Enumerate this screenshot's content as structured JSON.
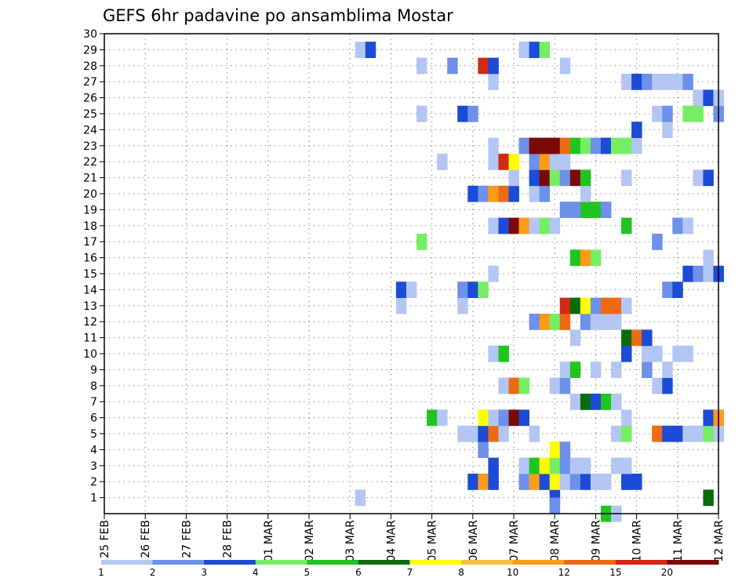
{
  "chart_data": {
    "type": "heatmap",
    "title": "GEFS 6hr padavine po ansamblima Mostar",
    "xlabel": "",
    "ylabel": "",
    "x_tick_labels": [
      "25 FEB",
      "26 FEB",
      "27 FEB",
      "28 FEB",
      "01 MAR",
      "02 MAR",
      "03 MAR",
      "04 MAR",
      "05 MAR",
      "06 MAR",
      "07 MAR",
      "08 MAR",
      "09 MAR",
      "10 MAR",
      "11 MAR",
      "12 MAR"
    ],
    "y_tick_labels": [
      "1",
      "2",
      "3",
      "4",
      "5",
      "6",
      "7",
      "8",
      "9",
      "10",
      "11",
      "12",
      "13",
      "14",
      "15",
      "16",
      "17",
      "18",
      "19",
      "20",
      "21",
      "22",
      "23",
      "24",
      "25",
      "26",
      "27",
      "28",
      "29",
      "30"
    ],
    "x_unit": "6-hour step from 25 FEB 00",
    "x_range": [
      0,
      60
    ],
    "y_range": [
      0,
      30
    ],
    "grid": true,
    "colorbar": {
      "levels": [
        "1",
        "2",
        "3",
        "4",
        "5",
        "6",
        "7",
        "8",
        "10",
        "12",
        "15",
        "20"
      ],
      "colors": [
        "#b3c6f3",
        "#6d90ea",
        "#1c4bd6",
        "#76ee63",
        "#1fc41f",
        "#086c0c",
        "#ffff00",
        "#ffbf40",
        "#ff9a1a",
        "#ee6a12",
        "#cf2a12",
        "#7a0a0a"
      ]
    },
    "cells": [
      {
        "x": 25,
        "y": 1,
        "c": 1
      },
      {
        "x": 44,
        "y": 1,
        "c": 3
      },
      {
        "x": 44,
        "y": 0.5,
        "c": 2
      },
      {
        "x": 59,
        "y": 1,
        "c": 6
      },
      {
        "x": 49,
        "y": 0,
        "c": 5
      },
      {
        "x": 50,
        "y": 0,
        "c": 1
      },
      {
        "x": 36,
        "y": 2,
        "c": 3
      },
      {
        "x": 37,
        "y": 2,
        "c": 9
      },
      {
        "x": 38,
        "y": 2,
        "c": 3
      },
      {
        "x": 41,
        "y": 2,
        "c": 2
      },
      {
        "x": 42,
        "y": 2,
        "c": 9
      },
      {
        "x": 43,
        "y": 2,
        "c": 3
      },
      {
        "x": 44,
        "y": 2,
        "c": 7
      },
      {
        "x": 45,
        "y": 2,
        "c": 1
      },
      {
        "x": 46,
        "y": 2,
        "c": 2
      },
      {
        "x": 47,
        "y": 2,
        "c": 3
      },
      {
        "x": 48,
        "y": 2,
        "c": 1
      },
      {
        "x": 49,
        "y": 2,
        "c": 1
      },
      {
        "x": 51,
        "y": 2,
        "c": 3
      },
      {
        "x": 52,
        "y": 2,
        "c": 3
      },
      {
        "x": 38,
        "y": 3,
        "c": 3
      },
      {
        "x": 41,
        "y": 3,
        "c": 1
      },
      {
        "x": 42,
        "y": 3,
        "c": 5
      },
      {
        "x": 43,
        "y": 3,
        "c": 7
      },
      {
        "x": 44,
        "y": 3,
        "c": 4
      },
      {
        "x": 45,
        "y": 3,
        "c": 2
      },
      {
        "x": 46,
        "y": 3,
        "c": 1
      },
      {
        "x": 47,
        "y": 3,
        "c": 1
      },
      {
        "x": 50,
        "y": 3,
        "c": 1
      },
      {
        "x": 51,
        "y": 3,
        "c": 1
      },
      {
        "x": 37,
        "y": 4,
        "c": 2
      },
      {
        "x": 44,
        "y": 4,
        "c": 7
      },
      {
        "x": 45,
        "y": 4,
        "c": 2
      },
      {
        "x": 35,
        "y": 5,
        "c": 1
      },
      {
        "x": 36,
        "y": 5,
        "c": 1
      },
      {
        "x": 37,
        "y": 5,
        "c": 3
      },
      {
        "x": 38,
        "y": 5,
        "c": 10
      },
      {
        "x": 39,
        "y": 5,
        "c": 1
      },
      {
        "x": 42,
        "y": 5,
        "c": 1
      },
      {
        "x": 50,
        "y": 5,
        "c": 1
      },
      {
        "x": 51,
        "y": 5,
        "c": 4
      },
      {
        "x": 54,
        "y": 5,
        "c": 10
      },
      {
        "x": 55,
        "y": 5,
        "c": 3
      },
      {
        "x": 56,
        "y": 5,
        "c": 3
      },
      {
        "x": 57,
        "y": 5,
        "c": 1
      },
      {
        "x": 58,
        "y": 5,
        "c": 1
      },
      {
        "x": 59,
        "y": 5,
        "c": 4
      },
      {
        "x": 60,
        "y": 5,
        "c": 1
      },
      {
        "x": 32,
        "y": 6,
        "c": 5
      },
      {
        "x": 33,
        "y": 6,
        "c": 1
      },
      {
        "x": 37,
        "y": 6,
        "c": 7
      },
      {
        "x": 38,
        "y": 6,
        "c": 1
      },
      {
        "x": 39,
        "y": 6,
        "c": 2
      },
      {
        "x": 40,
        "y": 6,
        "c": 12
      },
      {
        "x": 41,
        "y": 6,
        "c": 3
      },
      {
        "x": 51,
        "y": 6,
        "c": 1
      },
      {
        "x": 59,
        "y": 6,
        "c": 3
      },
      {
        "x": 60,
        "y": 6,
        "c": 9
      },
      {
        "x": 46,
        "y": 7,
        "c": 1
      },
      {
        "x": 47,
        "y": 7,
        "c": 6
      },
      {
        "x": 48,
        "y": 7,
        "c": 3
      },
      {
        "x": 49,
        "y": 7,
        "c": 5
      },
      {
        "x": 50,
        "y": 7,
        "c": 1
      },
      {
        "x": 39,
        "y": 8,
        "c": 1
      },
      {
        "x": 40,
        "y": 8,
        "c": 10
      },
      {
        "x": 41,
        "y": 8,
        "c": 4
      },
      {
        "x": 44,
        "y": 8,
        "c": 1
      },
      {
        "x": 45,
        "y": 8,
        "c": 2
      },
      {
        "x": 54,
        "y": 8,
        "c": 1
      },
      {
        "x": 55,
        "y": 8,
        "c": 3
      },
      {
        "x": 45,
        "y": 9,
        "c": 1
      },
      {
        "x": 46,
        "y": 9,
        "c": 5
      },
      {
        "x": 48,
        "y": 9,
        "c": 1
      },
      {
        "x": 50,
        "y": 9,
        "c": 1
      },
      {
        "x": 53,
        "y": 9,
        "c": 2
      },
      {
        "x": 55,
        "y": 9,
        "c": 1
      },
      {
        "x": 38,
        "y": 10,
        "c": 1
      },
      {
        "x": 39,
        "y": 10,
        "c": 5
      },
      {
        "x": 51,
        "y": 10,
        "c": 3
      },
      {
        "x": 53,
        "y": 10,
        "c": 1
      },
      {
        "x": 54,
        "y": 10,
        "c": 1
      },
      {
        "x": 56,
        "y": 10,
        "c": 1
      },
      {
        "x": 57,
        "y": 10,
        "c": 1
      },
      {
        "x": 46,
        "y": 11,
        "c": 1
      },
      {
        "x": 51,
        "y": 11,
        "c": 6
      },
      {
        "x": 52,
        "y": 11,
        "c": 10
      },
      {
        "x": 53,
        "y": 11,
        "c": 3
      },
      {
        "x": 42,
        "y": 12,
        "c": 2
      },
      {
        "x": 43,
        "y": 12,
        "c": 9
      },
      {
        "x": 44,
        "y": 12,
        "c": 4
      },
      {
        "x": 45,
        "y": 12,
        "c": 10
      },
      {
        "x": 47,
        "y": 12,
        "c": 2
      },
      {
        "x": 48,
        "y": 12,
        "c": 1
      },
      {
        "x": 49,
        "y": 12,
        "c": 1
      },
      {
        "x": 50,
        "y": 12,
        "c": 1
      },
      {
        "x": 29,
        "y": 13,
        "c": 1
      },
      {
        "x": 35,
        "y": 13,
        "c": 1
      },
      {
        "x": 45,
        "y": 13,
        "c": 11
      },
      {
        "x": 46,
        "y": 13,
        "c": 6
      },
      {
        "x": 47,
        "y": 13,
        "c": 7
      },
      {
        "x": 48,
        "y": 13,
        "c": 2
      },
      {
        "x": 49,
        "y": 13,
        "c": 10
      },
      {
        "x": 50,
        "y": 13,
        "c": 10
      },
      {
        "x": 51,
        "y": 13,
        "c": 1
      },
      {
        "x": 29,
        "y": 14,
        "c": 3
      },
      {
        "x": 30,
        "y": 14,
        "c": 1
      },
      {
        "x": 35,
        "y": 14,
        "c": 2
      },
      {
        "x": 36,
        "y": 14,
        "c": 3
      },
      {
        "x": 37,
        "y": 14,
        "c": 4
      },
      {
        "x": 55,
        "y": 14,
        "c": 2
      },
      {
        "x": 56,
        "y": 14,
        "c": 3
      },
      {
        "x": 38,
        "y": 15,
        "c": 1
      },
      {
        "x": 57,
        "y": 15,
        "c": 3
      },
      {
        "x": 58,
        "y": 15,
        "c": 2
      },
      {
        "x": 59,
        "y": 15,
        "c": 1
      },
      {
        "x": 60,
        "y": 15,
        "c": 3
      },
      {
        "x": 46,
        "y": 16,
        "c": 5
      },
      {
        "x": 47,
        "y": 16,
        "c": 9
      },
      {
        "x": 48,
        "y": 16,
        "c": 4
      },
      {
        "x": 59,
        "y": 16,
        "c": 1
      },
      {
        "x": 31,
        "y": 17,
        "c": 4
      },
      {
        "x": 54,
        "y": 17,
        "c": 2
      },
      {
        "x": 38,
        "y": 18,
        "c": 1
      },
      {
        "x": 39,
        "y": 18,
        "c": 3
      },
      {
        "x": 40,
        "y": 18,
        "c": 12
      },
      {
        "x": 41,
        "y": 18,
        "c": 9
      },
      {
        "x": 42,
        "y": 18,
        "c": 1
      },
      {
        "x": 43,
        "y": 18,
        "c": 4
      },
      {
        "x": 44,
        "y": 18,
        "c": 1
      },
      {
        "x": 51,
        "y": 18,
        "c": 5
      },
      {
        "x": 56,
        "y": 18,
        "c": 2
      },
      {
        "x": 57,
        "y": 18,
        "c": 1
      },
      {
        "x": 45,
        "y": 19,
        "c": 2
      },
      {
        "x": 46,
        "y": 19,
        "c": 2
      },
      {
        "x": 47,
        "y": 19,
        "c": 5
      },
      {
        "x": 48,
        "y": 19,
        "c": 5
      },
      {
        "x": 49,
        "y": 19,
        "c": 2
      },
      {
        "x": 36,
        "y": 20,
        "c": 3
      },
      {
        "x": 37,
        "y": 20,
        "c": 2
      },
      {
        "x": 38,
        "y": 20,
        "c": 9
      },
      {
        "x": 39,
        "y": 20,
        "c": 10
      },
      {
        "x": 40,
        "y": 20,
        "c": 3
      },
      {
        "x": 42,
        "y": 20,
        "c": 1
      },
      {
        "x": 43,
        "y": 20,
        "c": 2
      },
      {
        "x": 47,
        "y": 20,
        "c": 1
      },
      {
        "x": 40,
        "y": 21,
        "c": 1
      },
      {
        "x": 42,
        "y": 21,
        "c": 3
      },
      {
        "x": 43,
        "y": 21,
        "c": 12
      },
      {
        "x": 44,
        "y": 21,
        "c": 4
      },
      {
        "x": 45,
        "y": 21,
        "c": 2
      },
      {
        "x": 46,
        "y": 21,
        "c": 12
      },
      {
        "x": 47,
        "y": 21,
        "c": 5
      },
      {
        "x": 51,
        "y": 21,
        "c": 1
      },
      {
        "x": 58,
        "y": 21,
        "c": 1
      },
      {
        "x": 59,
        "y": 21,
        "c": 3
      },
      {
        "x": 33,
        "y": 22,
        "c": 1
      },
      {
        "x": 38,
        "y": 22,
        "c": 1
      },
      {
        "x": 39,
        "y": 22,
        "c": 11
      },
      {
        "x": 40,
        "y": 22,
        "c": 7
      },
      {
        "x": 42,
        "y": 22,
        "c": 2
      },
      {
        "x": 43,
        "y": 22,
        "c": 9
      },
      {
        "x": 44,
        "y": 22,
        "c": 1
      },
      {
        "x": 45,
        "y": 22,
        "c": 1
      },
      {
        "x": 38,
        "y": 23,
        "c": 1
      },
      {
        "x": 41,
        "y": 23,
        "c": 2
      },
      {
        "x": 42,
        "y": 23,
        "c": 12
      },
      {
        "x": 43,
        "y": 23,
        "c": 12
      },
      {
        "x": 44,
        "y": 23,
        "c": 12
      },
      {
        "x": 45,
        "y": 23,
        "c": 10
      },
      {
        "x": 46,
        "y": 23,
        "c": 5
      },
      {
        "x": 47,
        "y": 23,
        "c": 4
      },
      {
        "x": 48,
        "y": 23,
        "c": 2
      },
      {
        "x": 49,
        "y": 23,
        "c": 3
      },
      {
        "x": 50,
        "y": 23,
        "c": 4
      },
      {
        "x": 51,
        "y": 23,
        "c": 4
      },
      {
        "x": 52,
        "y": 23,
        "c": 1
      },
      {
        "x": 52,
        "y": 24,
        "c": 3
      },
      {
        "x": 55,
        "y": 24,
        "c": 1
      },
      {
        "x": 31,
        "y": 25,
        "c": 1
      },
      {
        "x": 35,
        "y": 25,
        "c": 3
      },
      {
        "x": 36,
        "y": 25,
        "c": 2
      },
      {
        "x": 54,
        "y": 25,
        "c": 1
      },
      {
        "x": 55,
        "y": 25,
        "c": 2
      },
      {
        "x": 57,
        "y": 25,
        "c": 4
      },
      {
        "x": 58,
        "y": 25,
        "c": 4
      },
      {
        "x": 60,
        "y": 25,
        "c": 2
      },
      {
        "x": 58,
        "y": 26,
        "c": 1
      },
      {
        "x": 59,
        "y": 26,
        "c": 3
      },
      {
        "x": 60,
        "y": 26,
        "c": 1
      },
      {
        "x": 38,
        "y": 27,
        "c": 1
      },
      {
        "x": 51,
        "y": 27,
        "c": 1
      },
      {
        "x": 52,
        "y": 27,
        "c": 3
      },
      {
        "x": 53,
        "y": 27,
        "c": 2
      },
      {
        "x": 54,
        "y": 27,
        "c": 1
      },
      {
        "x": 55,
        "y": 27,
        "c": 1
      },
      {
        "x": 56,
        "y": 27,
        "c": 1
      },
      {
        "x": 57,
        "y": 27,
        "c": 2
      },
      {
        "x": 31,
        "y": 28,
        "c": 1
      },
      {
        "x": 34,
        "y": 28,
        "c": 2
      },
      {
        "x": 37,
        "y": 28,
        "c": 11
      },
      {
        "x": 38,
        "y": 28,
        "c": 3
      },
      {
        "x": 45,
        "y": 28,
        "c": 1
      },
      {
        "x": 25,
        "y": 29,
        "c": 1
      },
      {
        "x": 26,
        "y": 29,
        "c": 3
      },
      {
        "x": 41,
        "y": 29,
        "c": 1
      },
      {
        "x": 42,
        "y": 29,
        "c": 3
      },
      {
        "x": 43,
        "y": 29,
        "c": 4
      }
    ]
  }
}
